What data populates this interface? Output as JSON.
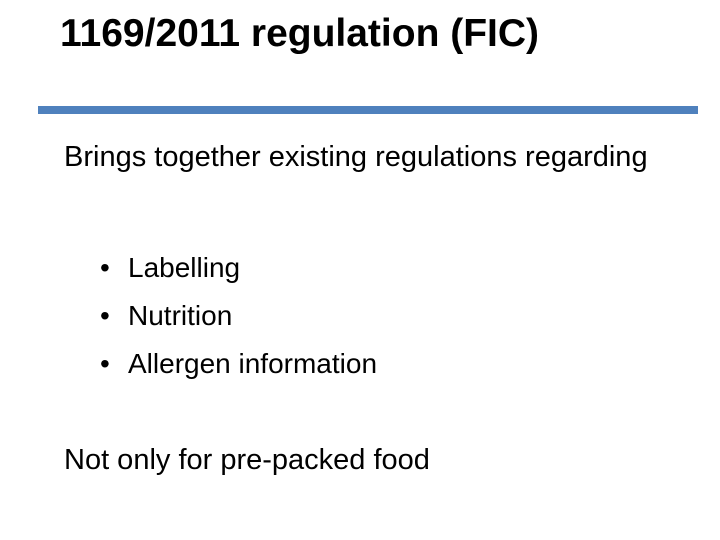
{
  "slide": {
    "title": "1169/2011 regulation (FIC)",
    "title_fontsize": 39,
    "title_color": "#000000",
    "divider_color": "#4f81bd",
    "divider_height": 8,
    "intro": "Brings together  existing regulations regarding",
    "body_fontsize": 29,
    "bullets": [
      {
        "mark": "•",
        "text": "Labelling"
      },
      {
        "mark": "•",
        "text": "Nutrition"
      },
      {
        "mark": "•",
        "text": "Allergen information"
      }
    ],
    "bullet_fontsize": 28,
    "bullet_line_height": 48,
    "closing": "Not only for pre-packed food",
    "background_color": "#ffffff"
  }
}
